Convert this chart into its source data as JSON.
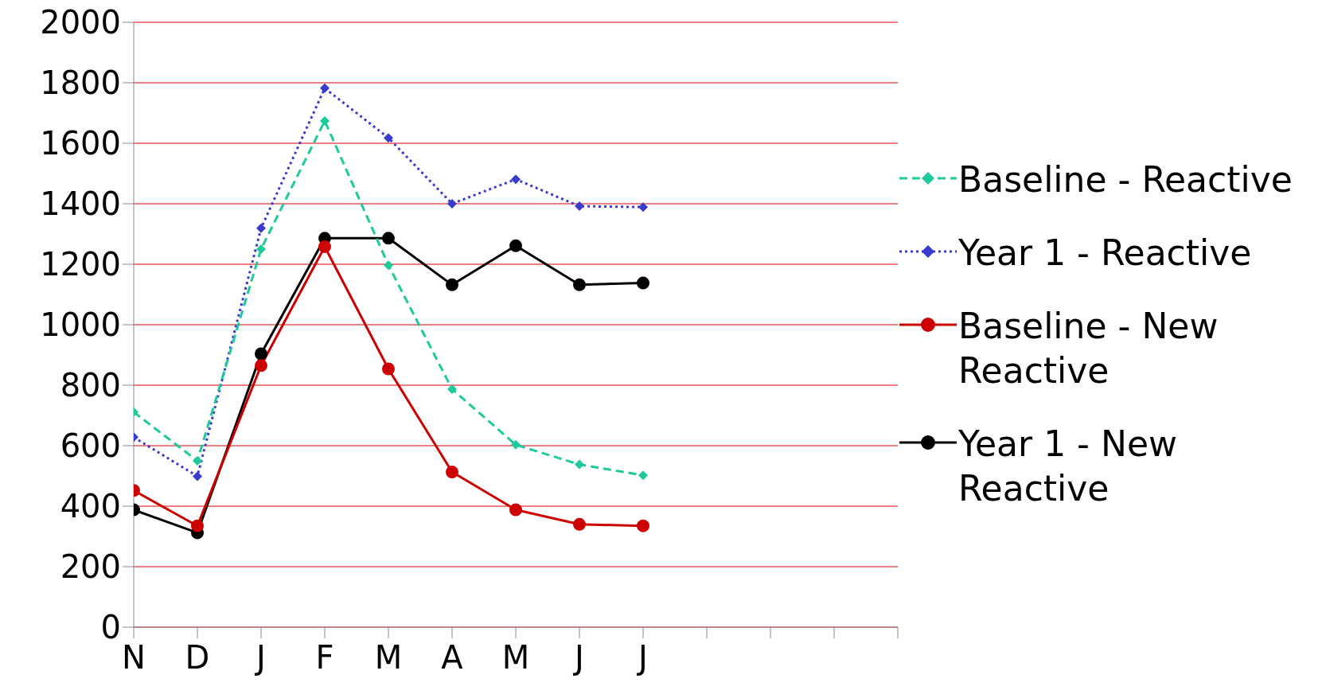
{
  "chart_data": {
    "type": "line",
    "categories": [
      "N",
      "D",
      "J",
      "F",
      "M",
      "A",
      "M",
      "J",
      "J",
      null,
      null,
      null
    ],
    "ylim": [
      0,
      2000
    ],
    "yticks": [
      0,
      200,
      400,
      600,
      800,
      1000,
      1200,
      1400,
      1600,
      1800,
      2000
    ],
    "grid": "y",
    "legend": "right",
    "series": [
      {
        "name": "Baseline - Reactive",
        "color": "#1ec99a",
        "line_style": "dashed",
        "marker": "diamond",
        "values": [
          711,
          550,
          1250,
          1674,
          1197,
          787,
          603,
          538,
          502,
          null,
          null,
          null
        ]
      },
      {
        "name": "Year 1 - Reactive",
        "color": "#3a3acc",
        "line_style": "dotted",
        "marker": "diamond",
        "values": [
          628,
          499,
          1319,
          1782,
          1618,
          1400,
          1481,
          1392,
          1389,
          null,
          null,
          null
        ]
      },
      {
        "name": "Baseline - New Reactive",
        "color": "#cc0000",
        "line_style": "solid",
        "marker": "circle",
        "values": [
          452,
          335,
          865,
          1258,
          854,
          513,
          388,
          340,
          335,
          null,
          null,
          null
        ]
      },
      {
        "name": "Year 1 - New Reactive",
        "color": "#000000",
        "line_style": "solid",
        "marker": "circle",
        "values": [
          388,
          312,
          904,
          1286,
          1286,
          1132,
          1261,
          1132,
          1138,
          null,
          null,
          null
        ]
      }
    ]
  }
}
